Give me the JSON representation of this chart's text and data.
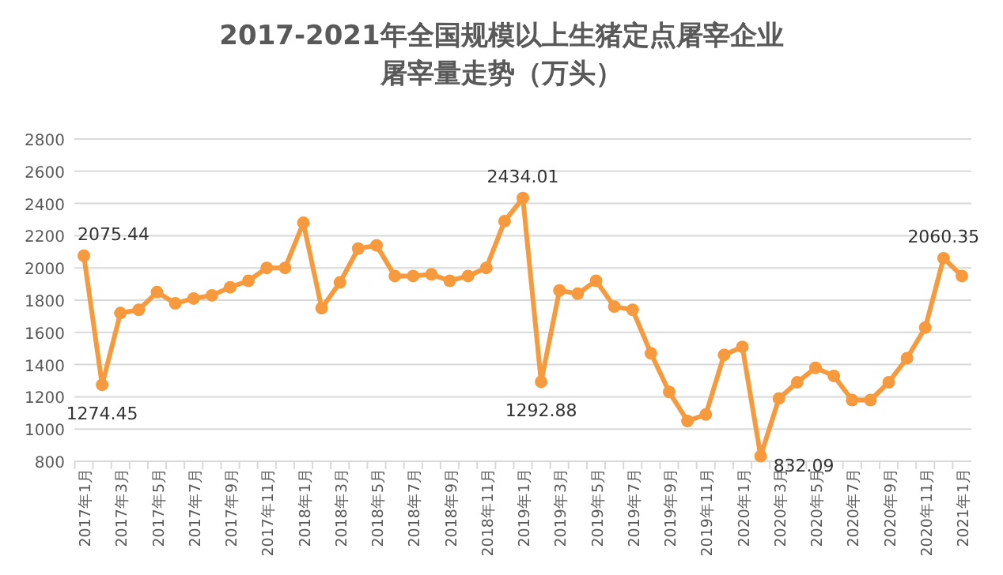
{
  "chart_data": {
    "type": "line",
    "title": "2017-2021年全国规模以上生猪定点屠宰企业屠宰量走势（万头）",
    "categories": [
      "2017年1月",
      null,
      "2017年3月",
      null,
      "2017年5月",
      null,
      "2017年7月",
      null,
      "2017年9月",
      null,
      "2017年11月",
      null,
      "2018年1月",
      null,
      "2018年3月",
      null,
      "2018年5月",
      null,
      "2018年7月",
      null,
      "2018年9月",
      null,
      "2018年11月",
      null,
      "2019年1月",
      null,
      "2019年3月",
      null,
      "2019年5月",
      null,
      "2019年7月",
      null,
      "2019年9月",
      null,
      "2019年11月",
      null,
      "2020年1月",
      null,
      "2020年3月",
      null,
      "2020年5月",
      null,
      "2020年7月",
      null,
      "2020年9月",
      null,
      "2020年11月",
      null,
      "2021年1月"
    ],
    "series": [
      {
        "color": "#f79a3e",
        "values": [
          2075.44,
          1274.45,
          1720,
          1740,
          1850,
          1780,
          1810,
          1830,
          1880,
          1920,
          2000,
          2000,
          2280,
          1750,
          1910,
          2120,
          2140,
          1950,
          1950,
          1960,
          1920,
          1950,
          2000,
          2290,
          2434.01,
          1292.88,
          1860,
          1840,
          1920,
          1760,
          1740,
          1470,
          1230,
          1050,
          1090,
          1460,
          1510,
          832.09,
          1190,
          1290,
          1380,
          1330,
          1180,
          1180,
          1290,
          1440,
          1630,
          2060.35,
          1950
        ],
        "value_labels": [
          "2075.44",
          "1274.45",
          null,
          null,
          null,
          null,
          null,
          null,
          null,
          null,
          null,
          null,
          null,
          null,
          null,
          null,
          null,
          null,
          null,
          null,
          null,
          null,
          null,
          null,
          "2434.01",
          "1292.88",
          null,
          null,
          null,
          null,
          null,
          null,
          null,
          null,
          null,
          null,
          null,
          "832.09",
          null,
          null,
          null,
          null,
          null,
          null,
          null,
          null,
          null,
          "2060.35",
          null
        ]
      }
    ],
    "ylim": [
      800,
      2800
    ],
    "yticks": [
      800,
      1000,
      1200,
      1400,
      1600,
      1800,
      2000,
      2200,
      2400,
      2600,
      2800
    ],
    "grid": "y",
    "marker": "circle",
    "line_style": "solid"
  }
}
